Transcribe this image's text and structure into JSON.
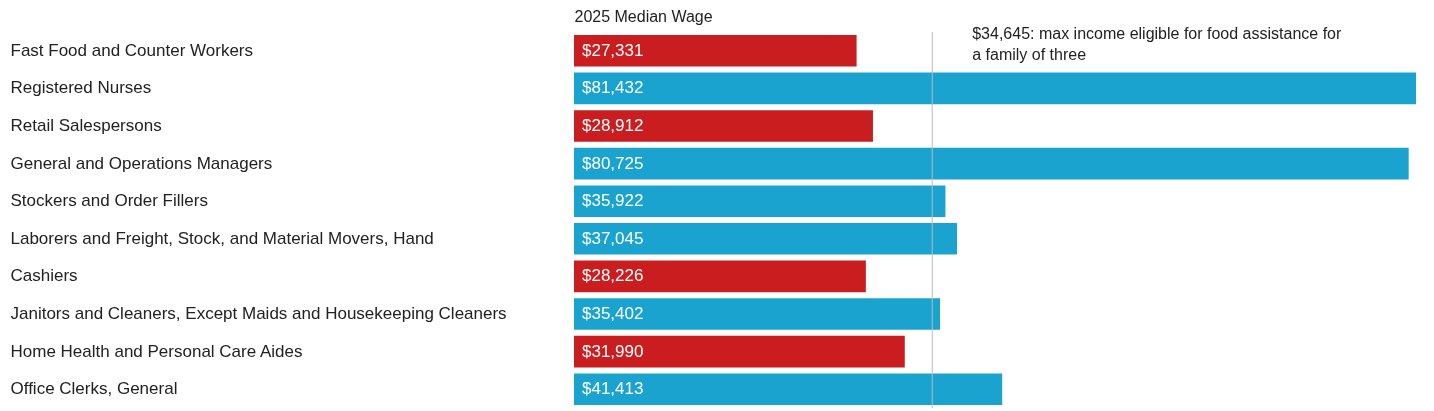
{
  "chart_data": {
    "type": "bar",
    "orientation": "horizontal",
    "xlabel": "2025 Median Wage",
    "categories": [
      "Fast Food and Counter Workers",
      "Registered Nurses",
      "Retail Salespersons",
      "General and Operations Managers",
      "Stockers and Order Fillers",
      "Laborers and Freight, Stock, and Material Movers, Hand",
      "Cashiers",
      "Janitors and Cleaners, Except Maids and Housekeeping Cleaners",
      "Home Health and Personal Care Aides",
      "Office Clerks, General"
    ],
    "values": [
      27331,
      81432,
      28912,
      80725,
      35922,
      37045,
      28226,
      35402,
      31990,
      41413
    ],
    "value_labels": [
      "$27,331",
      "$81,432",
      "$28,912",
      "$80,725",
      "$35,922",
      "$37,045",
      "$28,226",
      "$35,402",
      "$31,990",
      "$41,413"
    ],
    "colors": [
      "#c91d1f",
      "#1ba3d0",
      "#c91d1f",
      "#1ba3d0",
      "#1ba3d0",
      "#1ba3d0",
      "#c91d1f",
      "#1ba3d0",
      "#c91d1f",
      "#1ba3d0"
    ],
    "ref_lines": [
      {
        "axis": "x",
        "value": 34645,
        "label": "$34,645: max income eligible for food assistance for a family of three",
        "color": "#bbbbbb"
      }
    ]
  }
}
